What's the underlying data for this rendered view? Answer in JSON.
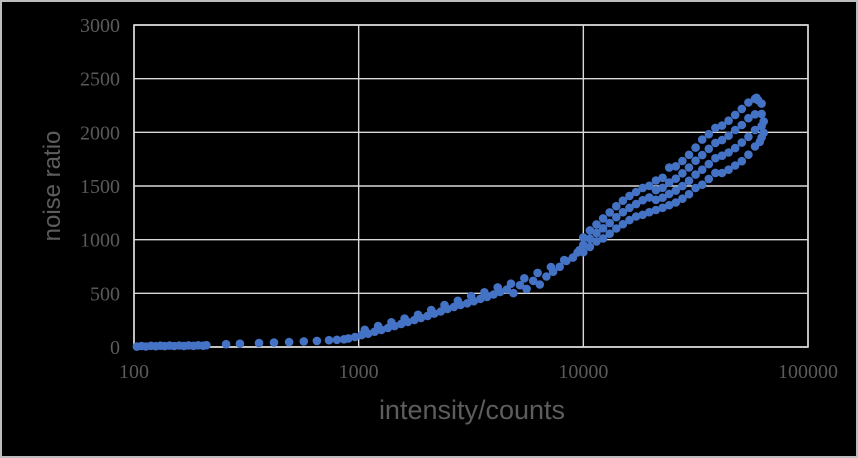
{
  "chart_data": {
    "type": "scatter",
    "title": "",
    "xlabel": "intensity/counts",
    "ylabel": "noise ratio",
    "x_scale": "log",
    "xlim": [
      100,
      100000
    ],
    "ylim": [
      0,
      3000
    ],
    "x_ticks": [
      100,
      1000,
      10000,
      100000
    ],
    "y_ticks": [
      0,
      500,
      1000,
      1500,
      2000,
      2500,
      3000
    ],
    "grid": true,
    "legend_position": "none",
    "colors": {
      "background": "#000000",
      "marker": "#4472C4",
      "gridline": "#D9D9D9",
      "plot_border": "#D9D9D9",
      "tick_text": "#5a5a5a",
      "axis_title_text": "#5d5d5d"
    },
    "points": [
      [
        103,
        4
      ],
      [
        108,
        9
      ],
      [
        113,
        5
      ],
      [
        119,
        11
      ],
      [
        125,
        7
      ],
      [
        131,
        12
      ],
      [
        137,
        8
      ],
      [
        144,
        13
      ],
      [
        151,
        9
      ],
      [
        159,
        14
      ],
      [
        167,
        10
      ],
      [
        175,
        15
      ],
      [
        184,
        11
      ],
      [
        193,
        16
      ],
      [
        203,
        12
      ],
      [
        210,
        17
      ],
      [
        257,
        26
      ],
      [
        296,
        31
      ],
      [
        360,
        36
      ],
      [
        420,
        41
      ],
      [
        490,
        46
      ],
      [
        570,
        52
      ],
      [
        652,
        57
      ],
      [
        738,
        63
      ],
      [
        800,
        67
      ],
      [
        860,
        72
      ],
      [
        900,
        80
      ],
      [
        963,
        93
      ],
      [
        1030,
        111
      ],
      [
        1102,
        124
      ],
      [
        1179,
        143
      ],
      [
        1262,
        159
      ],
      [
        1350,
        177
      ],
      [
        1445,
        195
      ],
      [
        1546,
        215
      ],
      [
        1654,
        233
      ],
      [
        1770,
        252
      ],
      [
        1894,
        271
      ],
      [
        2027,
        290
      ],
      [
        2169,
        311
      ],
      [
        2321,
        331
      ],
      [
        2483,
        354
      ],
      [
        2657,
        374
      ],
      [
        2843,
        392
      ],
      [
        3042,
        407
      ],
      [
        3255,
        427
      ],
      [
        3483,
        449
      ],
      [
        3727,
        467
      ],
      [
        3988,
        489
      ],
      [
        4267,
        513
      ],
      [
        4566,
        536
      ],
      [
        4885,
        502
      ],
      [
        5227,
        576
      ],
      [
        5593,
        541
      ],
      [
        5985,
        617
      ],
      [
        6404,
        582
      ],
      [
        6852,
        657
      ],
      [
        7332,
        702
      ],
      [
        7845,
        747
      ],
      [
        8394,
        801
      ],
      [
        8982,
        833
      ],
      [
        9610,
        902
      ],
      [
        1065,
        160
      ],
      [
        1220,
        195
      ],
      [
        1398,
        230
      ],
      [
        1602,
        265
      ],
      [
        1836,
        300
      ],
      [
        2104,
        345
      ],
      [
        2411,
        390
      ],
      [
        2763,
        430
      ],
      [
        3166,
        475
      ],
      [
        3628,
        510
      ],
      [
        4158,
        555
      ],
      [
        4765,
        590
      ],
      [
        5461,
        640
      ],
      [
        6258,
        690
      ],
      [
        7171,
        745
      ],
      [
        8218,
        810
      ],
      [
        9418,
        880
      ],
      [
        10000,
        883
      ],
      [
        10000,
        952
      ],
      [
        10000,
        1021
      ],
      [
        10700,
        932
      ],
      [
        10700,
        1008
      ],
      [
        10700,
        1086
      ],
      [
        11449,
        984
      ],
      [
        11449,
        1063
      ],
      [
        11449,
        1142
      ],
      [
        12250,
        1012
      ],
      [
        12250,
        1106
      ],
      [
        12250,
        1198
      ],
      [
        13108,
        1056
      ],
      [
        13108,
        1154
      ],
      [
        13108,
        1254
      ],
      [
        14025,
        1104
      ],
      [
        14025,
        1209
      ],
      [
        14025,
        1312
      ],
      [
        15007,
        1144
      ],
      [
        15007,
        1256
      ],
      [
        15007,
        1363
      ],
      [
        16058,
        1182
      ],
      [
        16058,
        1297
      ],
      [
        16058,
        1408
      ],
      [
        17182,
        1216
      ],
      [
        17182,
        1331
      ],
      [
        17182,
        1444
      ],
      [
        18384,
        1232
      ],
      [
        18384,
        1368
      ],
      [
        18384,
        1482
      ],
      [
        19671,
        1256
      ],
      [
        19671,
        1394
      ],
      [
        19671,
        1502
      ],
      [
        21048,
        1276
      ],
      [
        21048,
        1371
      ],
      [
        21048,
        1462
      ],
      [
        21048,
        1551
      ],
      [
        22522,
        1297
      ],
      [
        22522,
        1391
      ],
      [
        22522,
        1483
      ],
      [
        22522,
        1576
      ],
      [
        24098,
        1321
      ],
      [
        24098,
        1426
      ],
      [
        24098,
        1532
      ],
      [
        24098,
        1671
      ],
      [
        25785,
        1346
      ],
      [
        25785,
        1457
      ],
      [
        25785,
        1568
      ],
      [
        25785,
        1684
      ],
      [
        27590,
        1382
      ],
      [
        27590,
        1499
      ],
      [
        27590,
        1618
      ],
      [
        27590,
        1733
      ],
      [
        29521,
        1424
      ],
      [
        29521,
        1548
      ],
      [
        29521,
        1672
      ],
      [
        29521,
        1791
      ],
      [
        31588,
        1481
      ],
      [
        31588,
        1606
      ],
      [
        31588,
        1736
      ],
      [
        31588,
        1858
      ],
      [
        33799,
        1512
      ],
      [
        33799,
        1652
      ],
      [
        33799,
        1788
      ],
      [
        33799,
        1932
      ],
      [
        36165,
        1566
      ],
      [
        36165,
        1704
      ],
      [
        36165,
        1847
      ],
      [
        36165,
        1983
      ],
      [
        38697,
        1622
      ],
      [
        38697,
        1759
      ],
      [
        38697,
        1902
      ],
      [
        38697,
        2041
      ],
      [
        41405,
        1621
      ],
      [
        41405,
        1782
      ],
      [
        41405,
        1928
      ],
      [
        41405,
        2063
      ],
      [
        44304,
        1652
      ],
      [
        44304,
        1812
      ],
      [
        44304,
        1969
      ],
      [
        44304,
        2108
      ],
      [
        47405,
        1691
      ],
      [
        47405,
        1853
      ],
      [
        47405,
        2022
      ],
      [
        47405,
        2162
      ],
      [
        50723,
        1731
      ],
      [
        50723,
        1904
      ],
      [
        50723,
        2068
      ],
      [
        50723,
        2218
      ],
      [
        54274,
        1792
      ],
      [
        54274,
        1958
      ],
      [
        54274,
        2132
      ],
      [
        54274,
        2278
      ],
      [
        58073,
        1868
      ],
      [
        58073,
        2022
      ],
      [
        58073,
        2168
      ],
      [
        58073,
        2312
      ],
      [
        62138,
        1952
      ],
      [
        62138,
        2058
      ],
      [
        62138,
        2172
      ],
      [
        62138,
        2268
      ],
      [
        60000,
        2298
      ],
      [
        63500,
        2102
      ],
      [
        63500,
        1996
      ],
      [
        59000,
        2322
      ],
      [
        61000,
        1912
      ]
    ]
  }
}
